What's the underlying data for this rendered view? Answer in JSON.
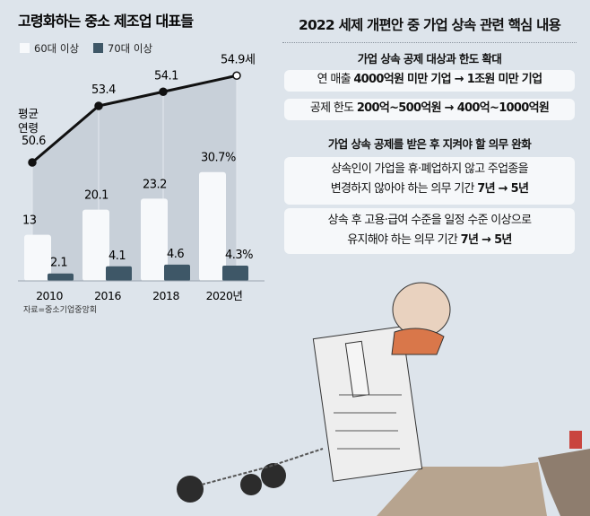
{
  "chart_data": {
    "type": "bar+line",
    "title": "고령화하는 중소 제조업 대표들",
    "categories": [
      "2010",
      "2016",
      "2018",
      "2020년"
    ],
    "series": [
      {
        "name": "60대 이상",
        "type": "bar",
        "values": [
          13,
          20.1,
          23.2,
          30.7
        ],
        "labels": [
          "13",
          "20.1",
          "23.2",
          "30.7%"
        ],
        "color": "#f7f9fb"
      },
      {
        "name": "70대 이상",
        "type": "bar",
        "values": [
          2.1,
          4.1,
          4.6,
          4.3
        ],
        "labels": [
          "2.1",
          "4.1",
          "4.6",
          "4.3%"
        ],
        "color": "#3e5767"
      },
      {
        "name": "평균 연령",
        "type": "line",
        "values": [
          50.6,
          53.4,
          54.1,
          54.9
        ],
        "labels": [
          "50.6",
          "53.4",
          "54.1",
          "54.9세"
        ],
        "color": "#111111"
      }
    ],
    "line_label": [
      "평균",
      "연령"
    ],
    "source": "자료=중소기업중앙회",
    "legend_position": "top-left"
  },
  "right": {
    "title": "2022 세제 개편안 중 가업 상속 관련 핵심 내용",
    "section1": {
      "heading": "가업 상속 공제 대상과 한도 확대",
      "items": [
        {
          "pre": "연 매출 ",
          "bold": "4000억원 미만 기업 → 1조원 미만 기업"
        },
        {
          "pre": "공제 한도 ",
          "bold": "200억~500억원 → 400억~1000억원"
        }
      ]
    },
    "section2": {
      "heading": "가업 상속 공제를 받은 후 지켜야 할 의무 완화",
      "items": [
        {
          "line1": "상속인이 가업을 휴·폐업하지 않고 주업종을",
          "line2": "변경하지 않아야 하는 의무 기간 ",
          "bold": "7년 → 5년"
        },
        {
          "line1": "상속 후 고용·급여 수준을 일정 수준 이상으로",
          "line2": "유지해야 하는 의무 기간 ",
          "bold": "7년 → 5년"
        }
      ]
    }
  }
}
